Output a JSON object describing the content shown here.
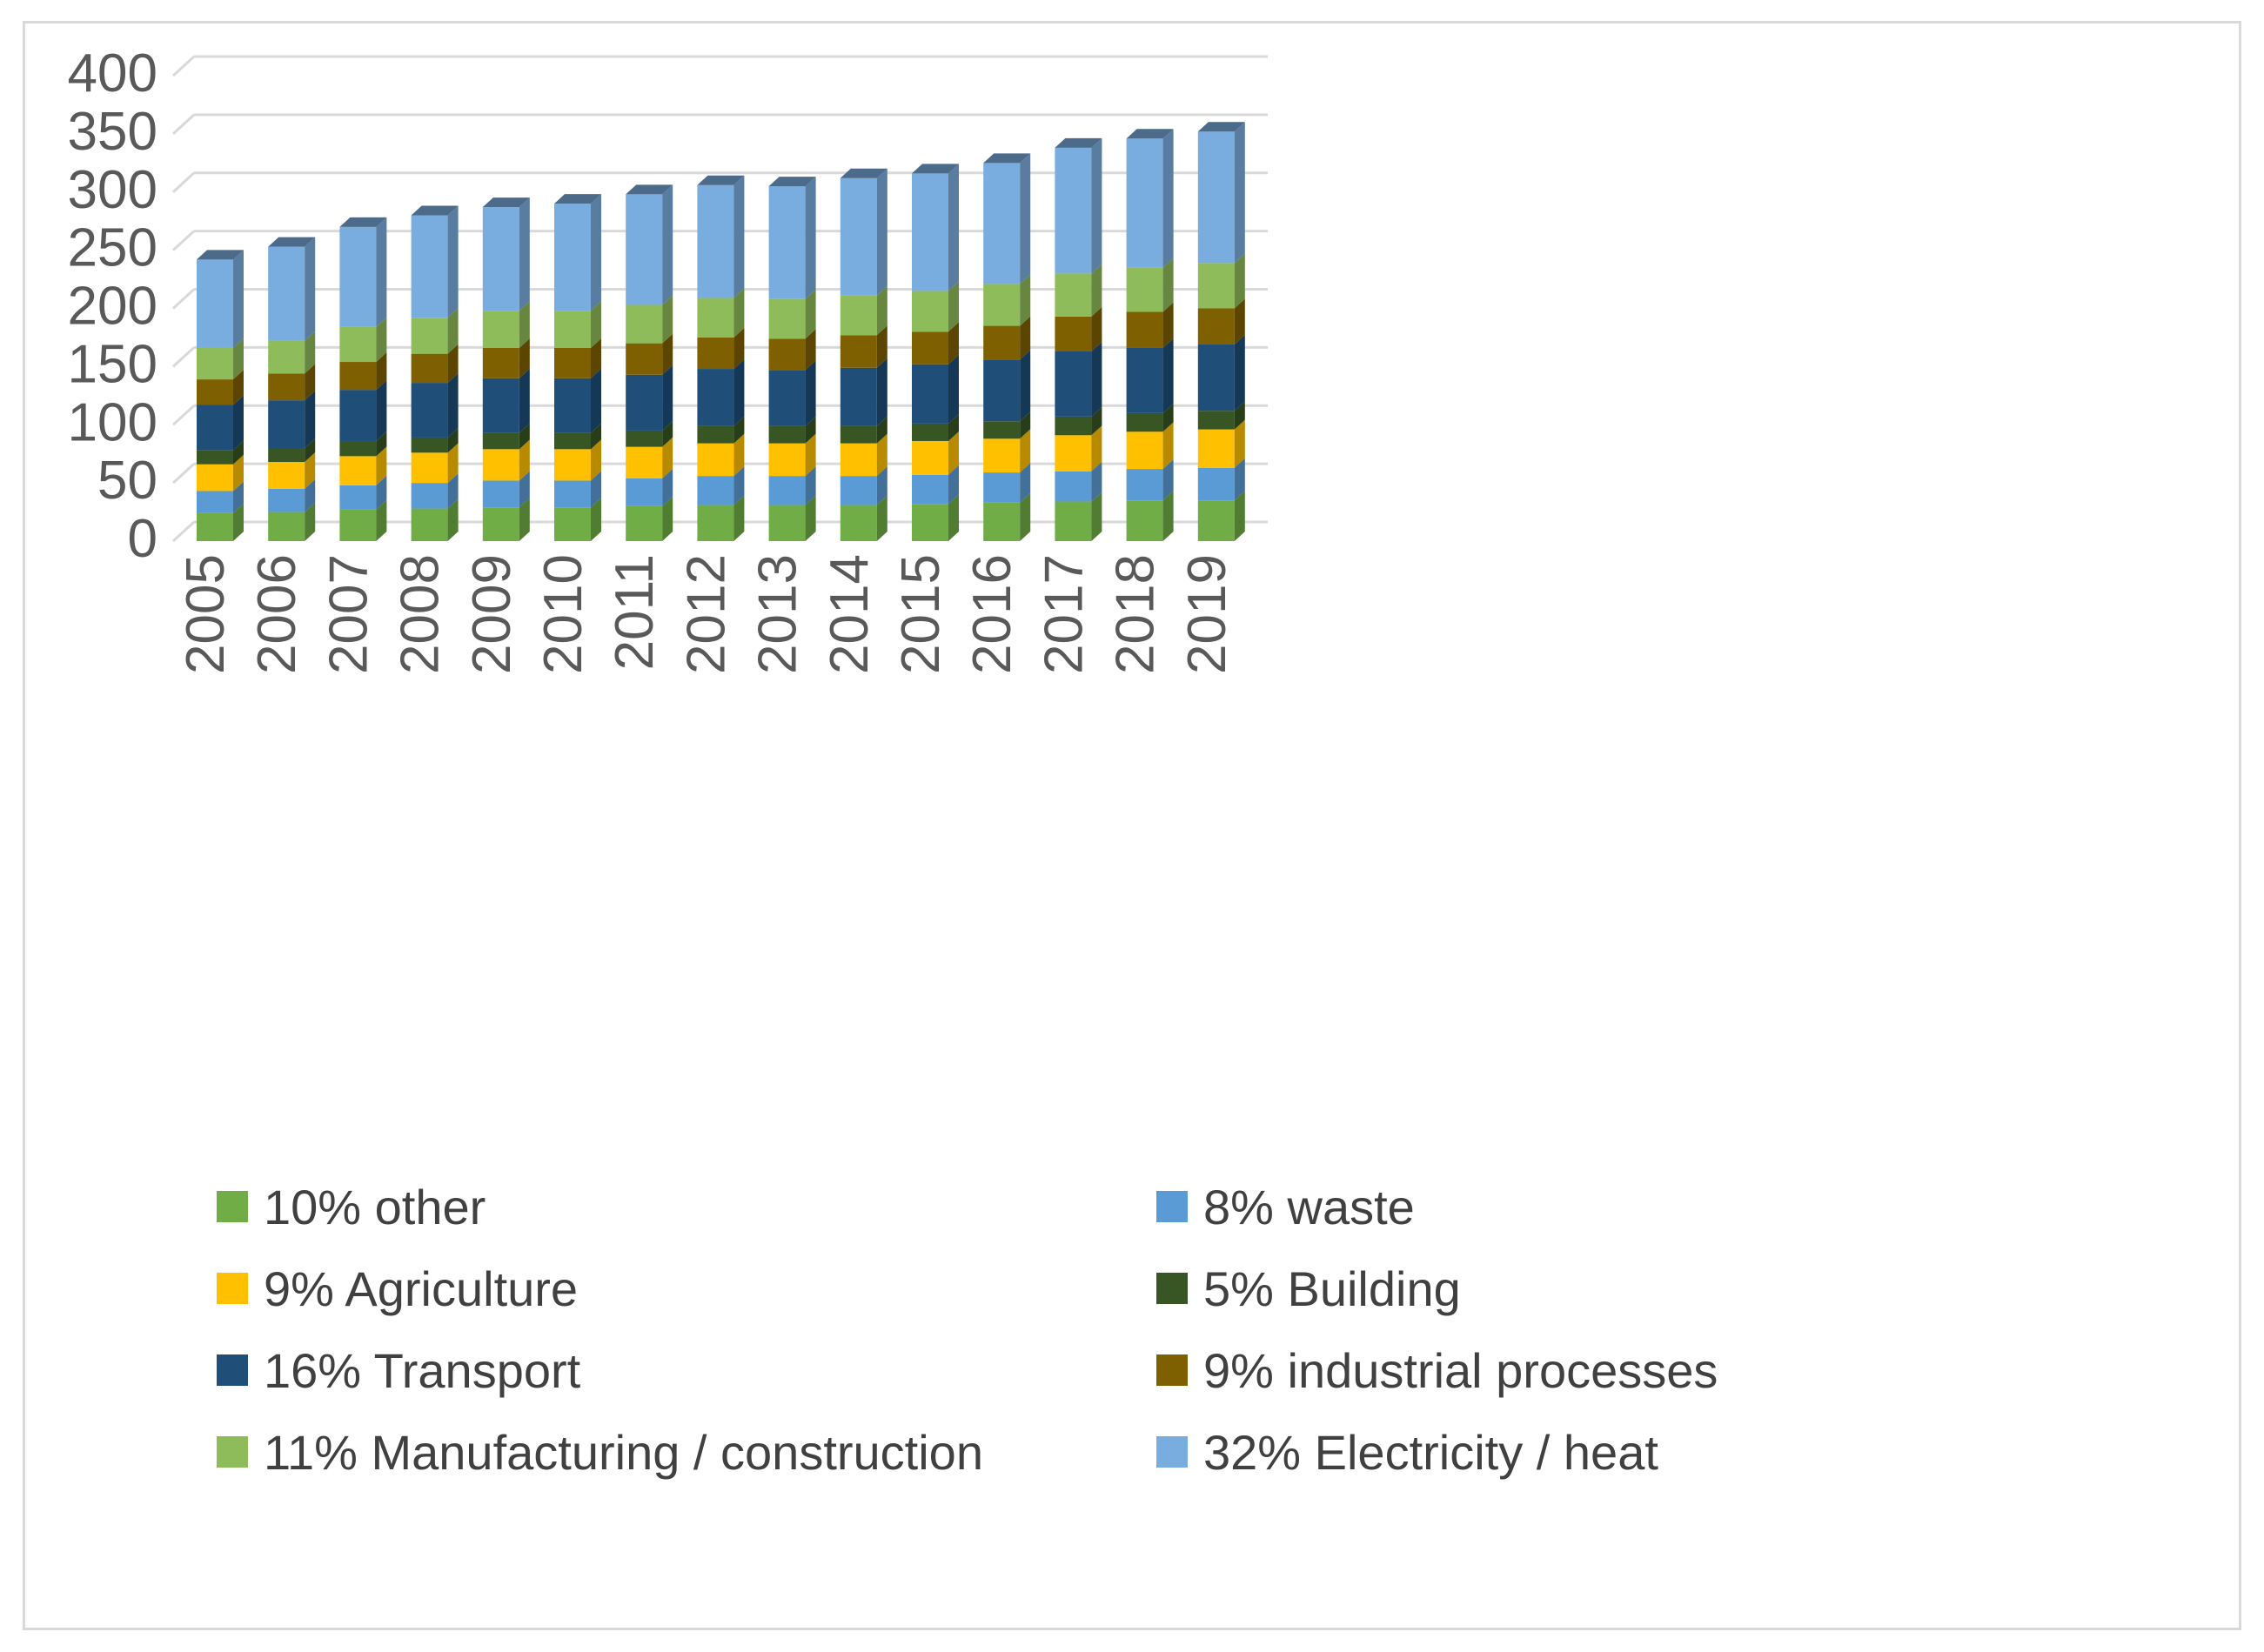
{
  "chart_data": {
    "type": "bar",
    "stacked": true,
    "three_d": true,
    "title": "",
    "xlabel": "",
    "ylabel": "",
    "ylim": [
      0,
      400
    ],
    "yticks": [
      0,
      50,
      100,
      150,
      200,
      250,
      300,
      350,
      400
    ],
    "grid": true,
    "legend_position": "bottom",
    "categories": [
      "2005",
      "2006",
      "2007",
      "2008",
      "2009",
      "2010",
      "2011",
      "2012",
      "2013",
      "2014",
      "2015",
      "2016",
      "2017",
      "2018",
      "2019"
    ],
    "series": [
      {
        "name": "10% other",
        "color": "#70ad47",
        "values": [
          24,
          25,
          27,
          28,
          29,
          29,
          30,
          31,
          31,
          31,
          32,
          33,
          34,
          35,
          35
        ]
      },
      {
        "name": "8% waste",
        "color": "#5b9bd5",
        "values": [
          19,
          20,
          21,
          22,
          23,
          23,
          24,
          25,
          25,
          25,
          25,
          26,
          26,
          27,
          28
        ]
      },
      {
        "name": "9% Agriculture",
        "color": "#ffc000",
        "values": [
          23,
          23,
          25,
          26,
          27,
          27,
          27,
          28,
          28,
          28,
          29,
          29,
          31,
          32,
          33
        ]
      },
      {
        "name": "5% Building",
        "color": "#375623",
        "values": [
          12,
          12,
          13,
          13,
          14,
          14,
          14,
          15,
          15,
          15,
          15,
          15,
          16,
          16,
          16
        ]
      },
      {
        "name": "16% Transport",
        "color": "#1f4e79",
        "values": [
          39,
          41,
          44,
          47,
          47,
          47,
          48,
          49,
          48,
          50,
          51,
          53,
          56,
          56,
          57
        ]
      },
      {
        "name": "9% industrial processes",
        "color": "#7f6000",
        "values": [
          22,
          23,
          24,
          25,
          26,
          26,
          27,
          27,
          27,
          28,
          28,
          29,
          30,
          31,
          31
        ]
      },
      {
        "name": "11% Manufacturing / construction",
        "color": "#8fbc5a",
        "values": [
          27,
          28,
          30,
          31,
          32,
          32,
          33,
          34,
          34,
          34,
          35,
          36,
          37,
          38,
          39
        ]
      },
      {
        "name": "32% Electricity / heat",
        "color": "#7aaddf",
        "values": [
          76,
          81,
          86,
          88,
          89,
          92,
          95,
          97,
          97,
          101,
          101,
          104,
          108,
          111,
          113
        ]
      }
    ]
  }
}
